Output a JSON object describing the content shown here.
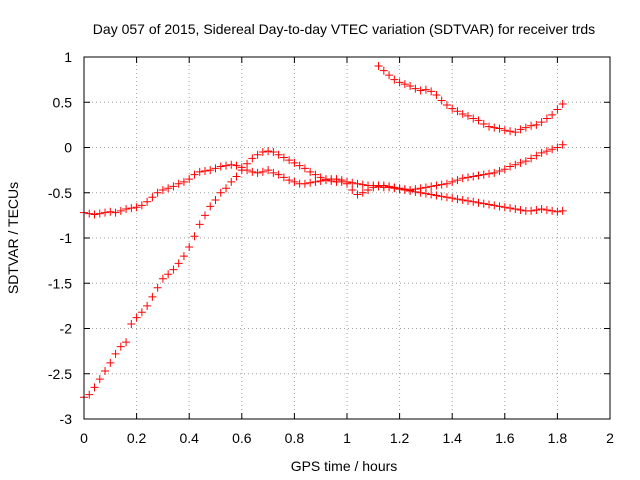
{
  "chart_data": {
    "type": "scatter",
    "title": "Day 057 of 2015, Sidereal Day-to-day VTEC variation (SDTVAR) for receiver trds",
    "xlabel": "GPS time / hours",
    "ylabel": "SDTVAR / TECUs",
    "xlim": [
      0,
      2
    ],
    "ylim": [
      -3,
      1
    ],
    "xticks": [
      0,
      0.2,
      0.4,
      0.6,
      0.8,
      1,
      1.2,
      1.4,
      1.6,
      1.8,
      2
    ],
    "yticks": [
      -3,
      -2.5,
      -2,
      -1.5,
      -1,
      -0.5,
      0,
      0.5,
      1
    ],
    "xtick_labels": [
      "0",
      "0.2",
      "0.4",
      "0.6",
      "0.8",
      "1",
      "1.2",
      "1.4",
      "1.6",
      "1.8",
      "2"
    ],
    "ytick_labels": [
      "-3",
      "-2.5",
      "-2",
      "-1.5",
      "-1",
      "-0.5",
      "0",
      "0.5",
      "1"
    ],
    "grid": true,
    "marker": "+",
    "color": "#ff0000",
    "series": [
      {
        "x": [
          0.0,
          0.02,
          0.04,
          0.06,
          0.08,
          0.1,
          0.12,
          0.14,
          0.16,
          0.18,
          0.2,
          0.22,
          0.24,
          0.26,
          0.28,
          0.3,
          0.32,
          0.34,
          0.36,
          0.38,
          0.4,
          0.42,
          0.44,
          0.46,
          0.48,
          0.5,
          0.52,
          0.54,
          0.56,
          0.58,
          0.6,
          0.62,
          0.64,
          0.66,
          0.68,
          0.7,
          0.72,
          0.74,
          0.76,
          0.78,
          0.8,
          0.82,
          0.84,
          0.86,
          0.88,
          0.9,
          0.92,
          0.94,
          0.96,
          0.98,
          1.0,
          1.02,
          1.04,
          1.06,
          1.08,
          1.1,
          1.12,
          1.14,
          1.16,
          1.18,
          1.2,
          1.22,
          1.24,
          1.26,
          1.28,
          1.3,
          1.32,
          1.34,
          1.36,
          1.38,
          1.4,
          1.42,
          1.44,
          1.46,
          1.48,
          1.5,
          1.52,
          1.54,
          1.56,
          1.58,
          1.6,
          1.62,
          1.64,
          1.66,
          1.68,
          1.7,
          1.72,
          1.74,
          1.76,
          1.78,
          1.8,
          1.82
        ],
        "y": [
          -0.72,
          -0.73,
          -0.74,
          -0.73,
          -0.72,
          -0.71,
          -0.72,
          -0.7,
          -0.68,
          -0.67,
          -0.66,
          -0.64,
          -0.6,
          -0.55,
          -0.5,
          -0.47,
          -0.45,
          -0.43,
          -0.4,
          -0.38,
          -0.35,
          -0.3,
          -0.27,
          -0.26,
          -0.25,
          -0.23,
          -0.21,
          -0.2,
          -0.19,
          -0.2,
          -0.22,
          -0.25,
          -0.27,
          -0.28,
          -0.27,
          -0.25,
          -0.28,
          -0.3,
          -0.33,
          -0.36,
          -0.38,
          -0.4,
          -0.4,
          -0.39,
          -0.38,
          -0.37,
          -0.36,
          -0.35,
          -0.35,
          -0.36,
          -0.4,
          -0.47,
          -0.52,
          -0.5,
          -0.47,
          -0.44,
          -0.42,
          -0.42,
          -0.43,
          -0.44,
          -0.45,
          -0.46,
          -0.47,
          -0.46,
          -0.45,
          -0.44,
          -0.43,
          -0.42,
          -0.41,
          -0.4,
          -0.38,
          -0.36,
          -0.34,
          -0.33,
          -0.32,
          -0.31,
          -0.3,
          -0.29,
          -0.28,
          -0.26,
          -0.24,
          -0.21,
          -0.19,
          -0.17,
          -0.15,
          -0.12,
          -0.09,
          -0.06,
          -0.04,
          -0.02,
          0.0,
          0.03
        ]
      },
      {
        "x": [
          0.0,
          0.02,
          0.04,
          0.06,
          0.08,
          0.1,
          0.12,
          0.14,
          0.16,
          0.18,
          0.2,
          0.22,
          0.24,
          0.26,
          0.28,
          0.3,
          0.32,
          0.34,
          0.36,
          0.38,
          0.4,
          0.42,
          0.44,
          0.46,
          0.48,
          0.5,
          0.52,
          0.54,
          0.56,
          0.58,
          0.6,
          0.62,
          0.64,
          0.66,
          0.68,
          0.7,
          0.72,
          0.74,
          0.76,
          0.78,
          0.8,
          0.82,
          0.84,
          0.86,
          0.88,
          0.9,
          0.92,
          0.94,
          0.96,
          0.98,
          1.0,
          1.02,
          1.04,
          1.06,
          1.08,
          1.1,
          1.12,
          1.14,
          1.16,
          1.18,
          1.2,
          1.22,
          1.24,
          1.26,
          1.28,
          1.3,
          1.32,
          1.34,
          1.36,
          1.38,
          1.4,
          1.42,
          1.44,
          1.46,
          1.48,
          1.5,
          1.52,
          1.54,
          1.56,
          1.58,
          1.6,
          1.62,
          1.64,
          1.66,
          1.68,
          1.7,
          1.72,
          1.74,
          1.76,
          1.78,
          1.8,
          1.82
        ],
        "y": [
          -2.76,
          -2.73,
          -2.65,
          -2.56,
          -2.47,
          -2.38,
          -2.28,
          -2.2,
          -2.15,
          -1.95,
          -1.88,
          -1.82,
          -1.75,
          -1.65,
          -1.55,
          -1.45,
          -1.4,
          -1.35,
          -1.28,
          -1.2,
          -1.1,
          -0.98,
          -0.85,
          -0.75,
          -0.65,
          -0.58,
          -0.5,
          -0.45,
          -0.38,
          -0.32,
          -0.25,
          -0.18,
          -0.12,
          -0.08,
          -0.05,
          -0.04,
          -0.05,
          -0.08,
          -0.11,
          -0.14,
          -0.17,
          -0.2,
          -0.23,
          -0.27,
          -0.3,
          -0.33,
          -0.35,
          -0.37,
          -0.38,
          -0.38,
          -0.38,
          -0.39,
          -0.4,
          -0.41,
          -0.42,
          -0.42,
          -0.43,
          -0.44,
          -0.44,
          -0.45,
          -0.46,
          -0.47,
          -0.48,
          -0.49,
          -0.5,
          -0.51,
          -0.52,
          -0.53,
          -0.54,
          -0.55,
          -0.56,
          -0.57,
          -0.58,
          -0.59,
          -0.6,
          -0.61,
          -0.62,
          -0.63,
          -0.64,
          -0.65,
          -0.66,
          -0.67,
          -0.68,
          -0.69,
          -0.7,
          -0.7,
          -0.69,
          -0.68,
          -0.69,
          -0.7,
          -0.71,
          -0.7
        ]
      },
      {
        "x": [
          1.12,
          1.14,
          1.16,
          1.18,
          1.2,
          1.22,
          1.24,
          1.26,
          1.28,
          1.3,
          1.32,
          1.34,
          1.36,
          1.38,
          1.4,
          1.42,
          1.44,
          1.46,
          1.48,
          1.5,
          1.52,
          1.54,
          1.56,
          1.58,
          1.6,
          1.62,
          1.64,
          1.66,
          1.68,
          1.7,
          1.72,
          1.74,
          1.76,
          1.78,
          1.8,
          1.82
        ],
        "y": [
          0.9,
          0.85,
          0.8,
          0.75,
          0.72,
          0.7,
          0.68,
          0.65,
          0.63,
          0.64,
          0.62,
          0.58,
          0.52,
          0.47,
          0.43,
          0.4,
          0.37,
          0.35,
          0.32,
          0.3,
          0.26,
          0.23,
          0.22,
          0.21,
          0.19,
          0.18,
          0.17,
          0.2,
          0.22,
          0.24,
          0.25,
          0.28,
          0.32,
          0.36,
          0.42,
          0.48
        ]
      }
    ]
  }
}
